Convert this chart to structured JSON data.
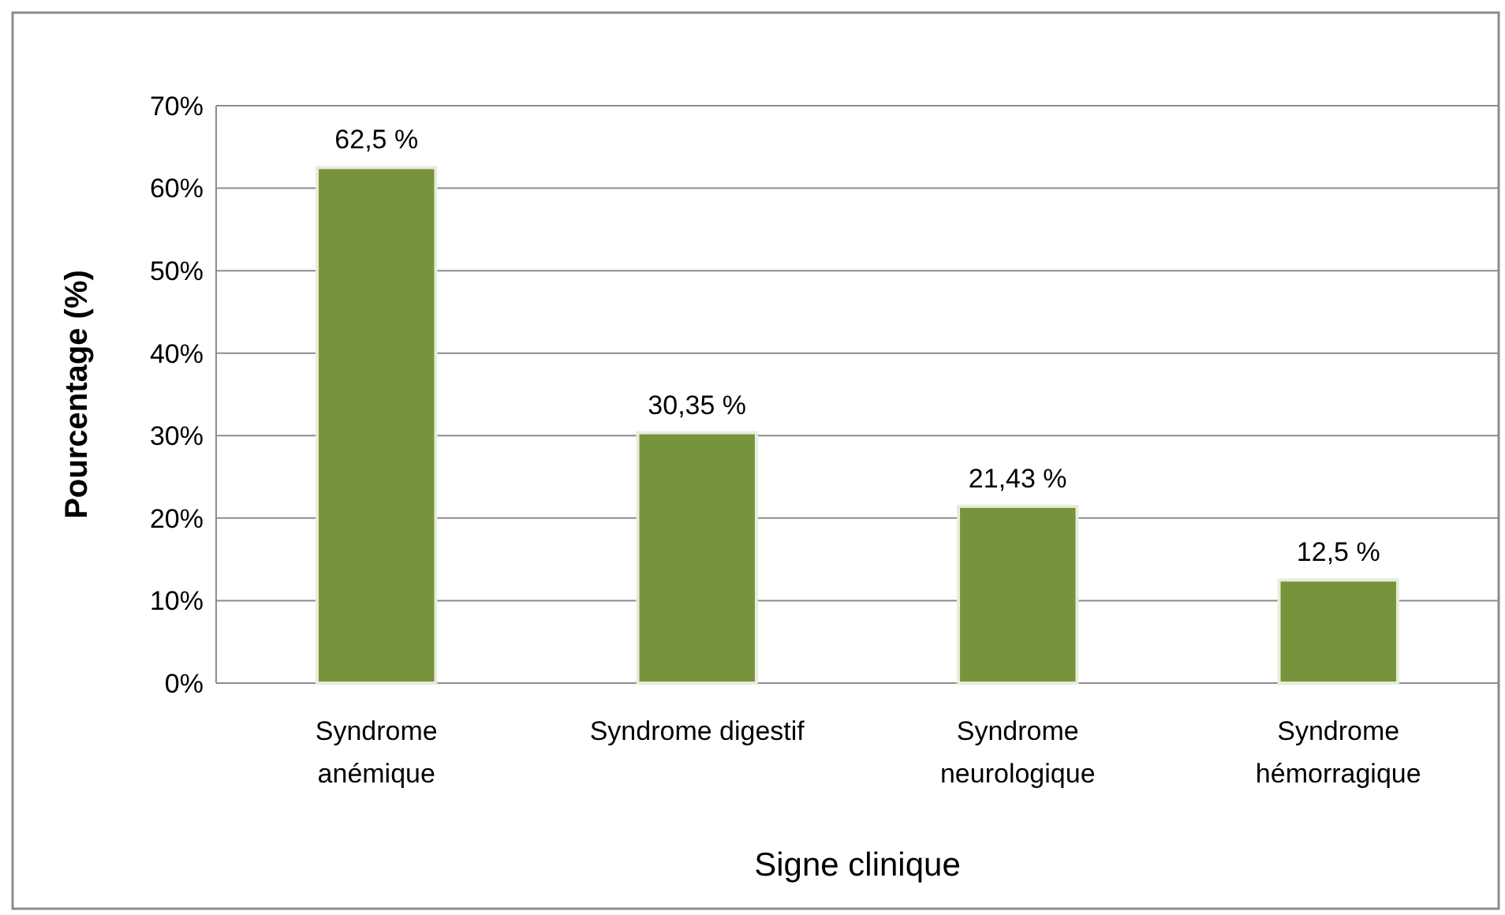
{
  "chart_data": {
    "type": "bar",
    "xlabel": "Signe clinique",
    "ylabel": "Pourcentage (%)",
    "categories": [
      "Syndrome\nanémique",
      "Syndrome digestif",
      "Syndrome\nneurologique",
      "Syndrome\nhémorragique"
    ],
    "values": [
      62.5,
      30.35,
      21.43,
      12.5
    ],
    "value_labels": [
      "62,5 %",
      "30,35 %",
      "21,43 %",
      "12,5 %"
    ],
    "color": "#77933c",
    "ylim": [
      0,
      70
    ],
    "yticks": [
      {
        "value": 0,
        "label": "0%"
      },
      {
        "value": 10,
        "label": "10%"
      },
      {
        "value": 20,
        "label": "20%"
      },
      {
        "value": 30,
        "label": "30%"
      },
      {
        "value": 40,
        "label": "40%"
      },
      {
        "value": 50,
        "label": "50%"
      },
      {
        "value": 60,
        "label": "60%"
      },
      {
        "value": 70,
        "label": "70%"
      }
    ],
    "grid": "y"
  }
}
